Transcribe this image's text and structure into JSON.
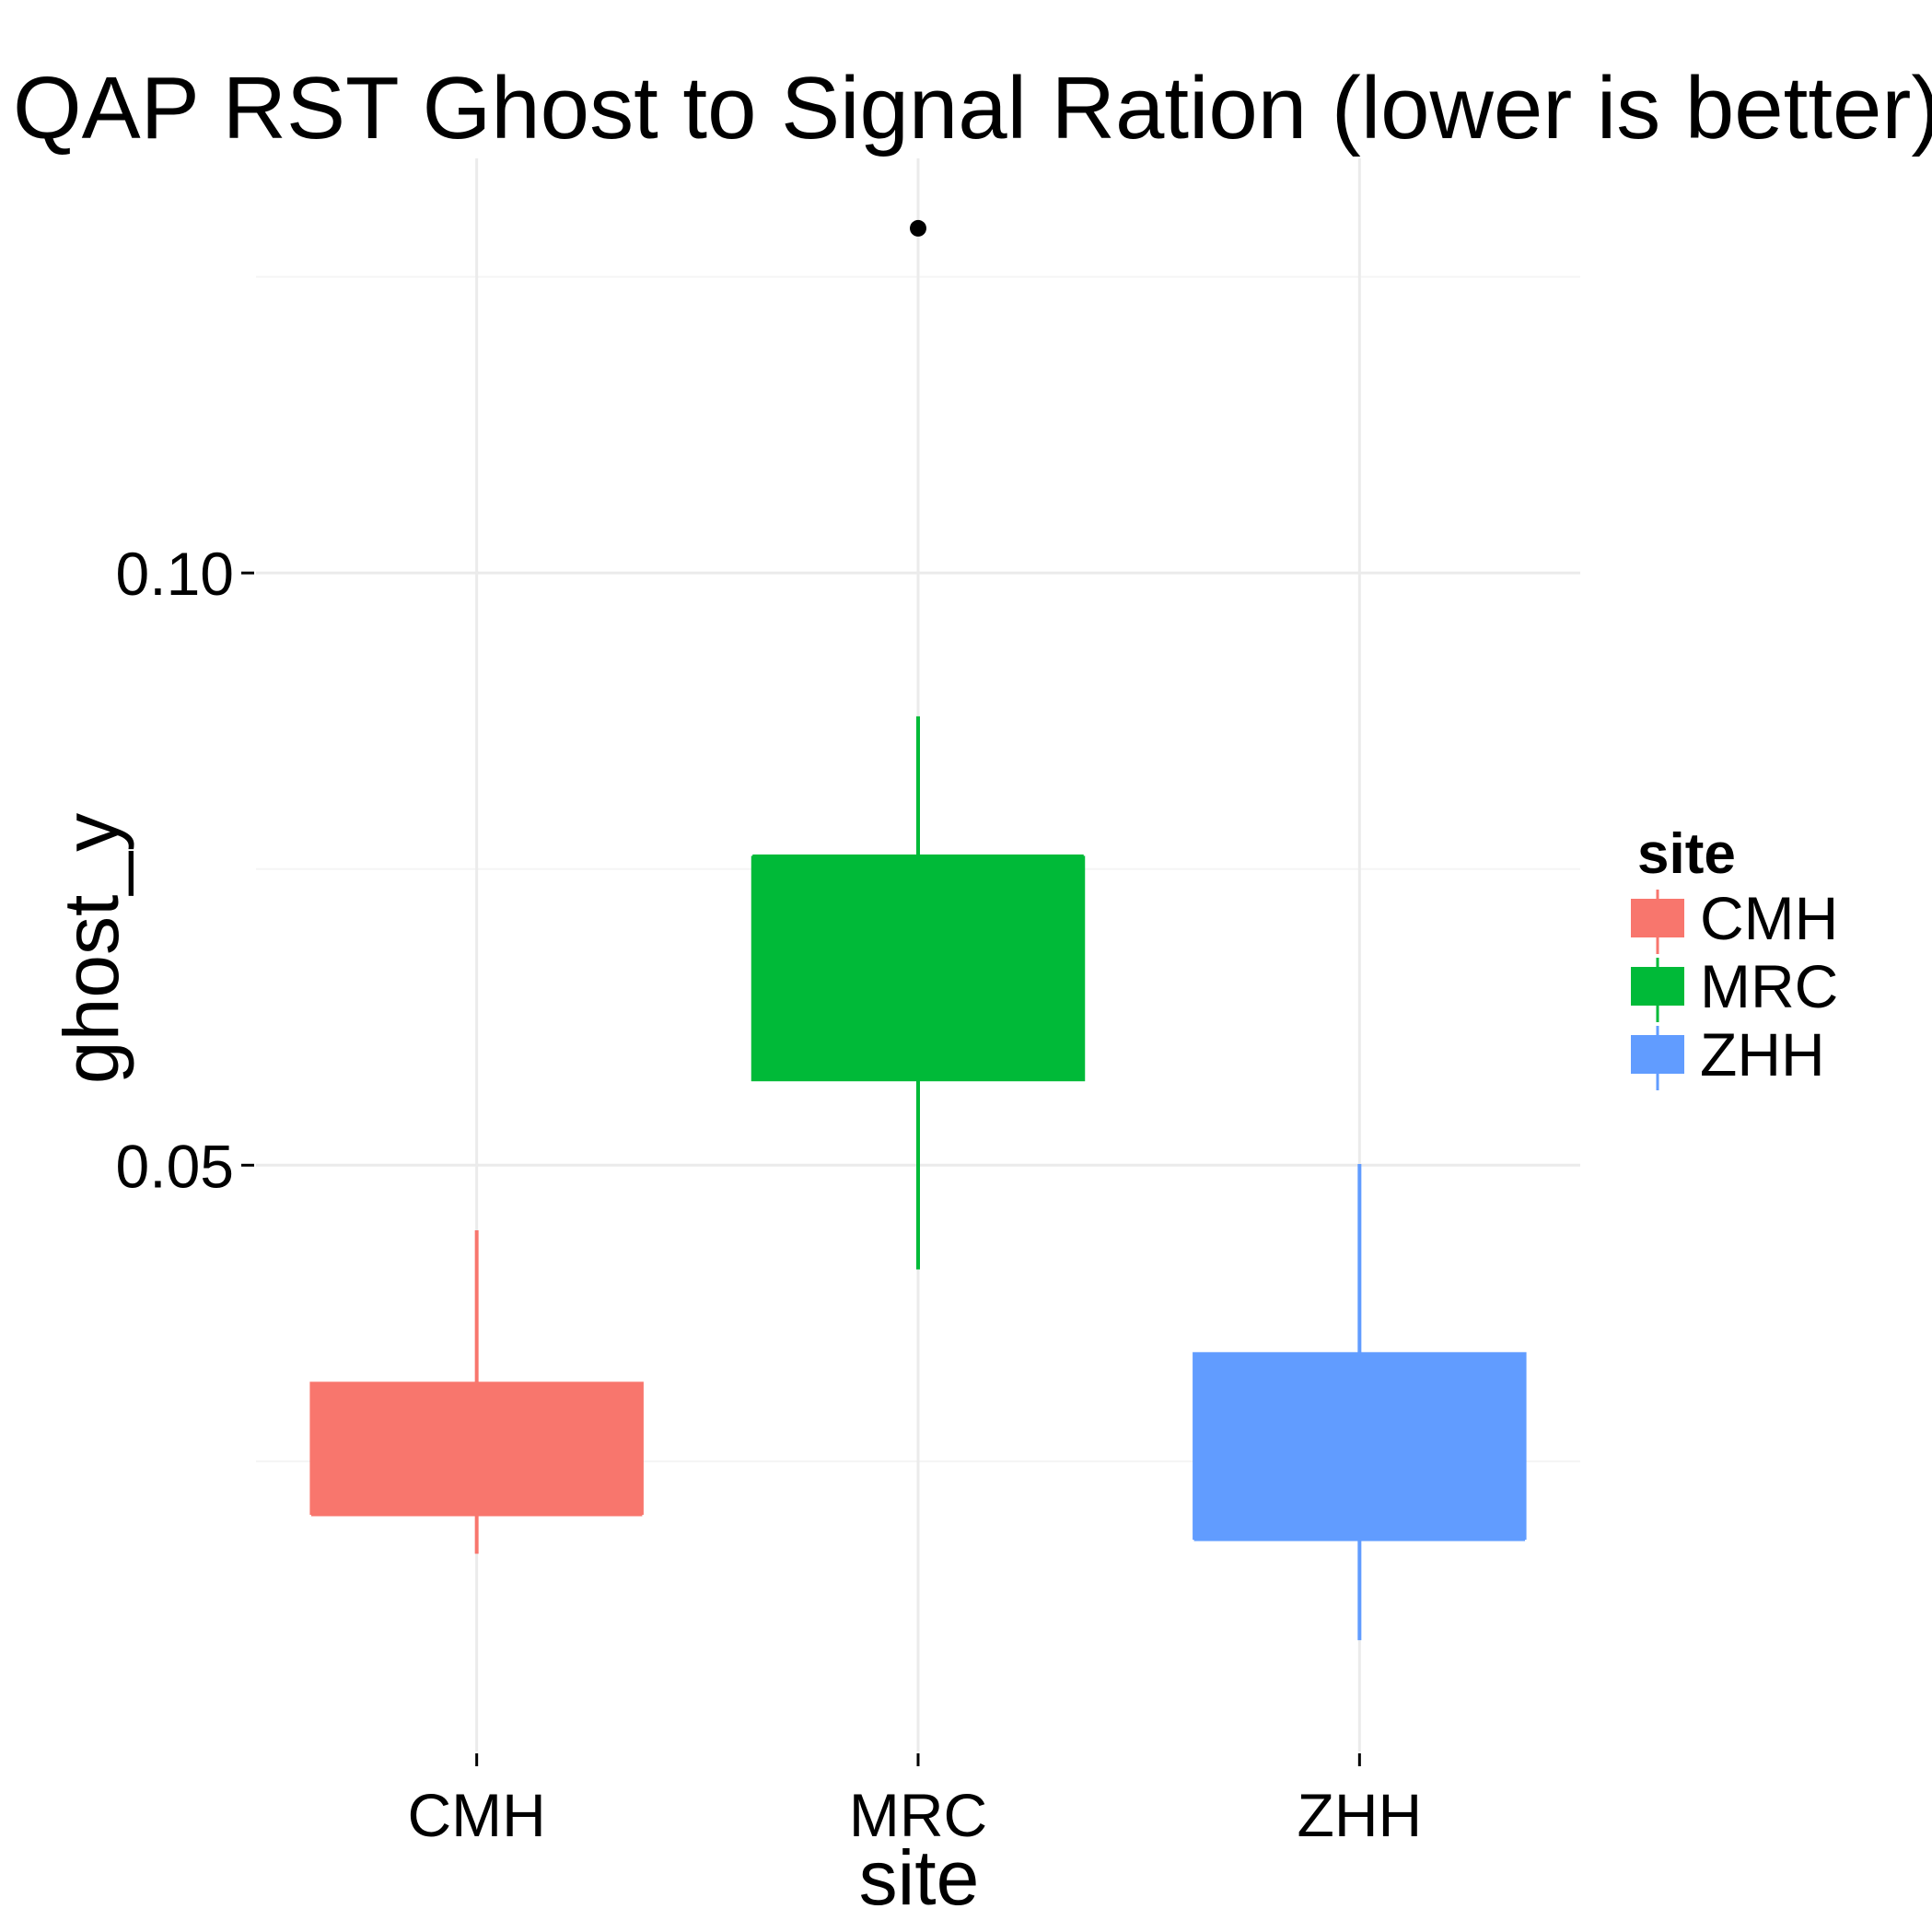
{
  "chart_data": {
    "type": "boxplot",
    "title": "QAP RST Ghost to Signal Ration (lower is better)",
    "xlabel": "site",
    "ylabel": "ghost_y",
    "categories": [
      "CMH",
      "MRC",
      "ZHH"
    ],
    "colors": [
      "#F8766D",
      "#00BA38",
      "#619CFF"
    ],
    "boxes": [
      {
        "category": "CMH",
        "whisker_low": 0.0172,
        "q1": 0.0206,
        "median": 0.0206,
        "q3": 0.0316,
        "whisker_high": 0.0445,
        "outliers": []
      },
      {
        "category": "MRC",
        "whisker_low": 0.0412,
        "q1": 0.0572,
        "median": 0.076,
        "q3": 0.076,
        "whisker_high": 0.0879,
        "outliers": [
          0.1291
        ]
      },
      {
        "category": "ZHH",
        "whisker_low": 0.0099,
        "q1": 0.0185,
        "median": 0.0185,
        "q3": 0.0341,
        "whisker_high": 0.0501,
        "outliers": []
      }
    ],
    "y_ticks": [
      0.05,
      0.1
    ],
    "y_tick_labels": [
      "0.05",
      "0.10"
    ],
    "ylim": [
      0.0005,
      0.135
    ],
    "grid": true,
    "legend": {
      "title": "site",
      "position": "right",
      "entries": [
        "CMH",
        "MRC",
        "ZHH"
      ]
    }
  }
}
